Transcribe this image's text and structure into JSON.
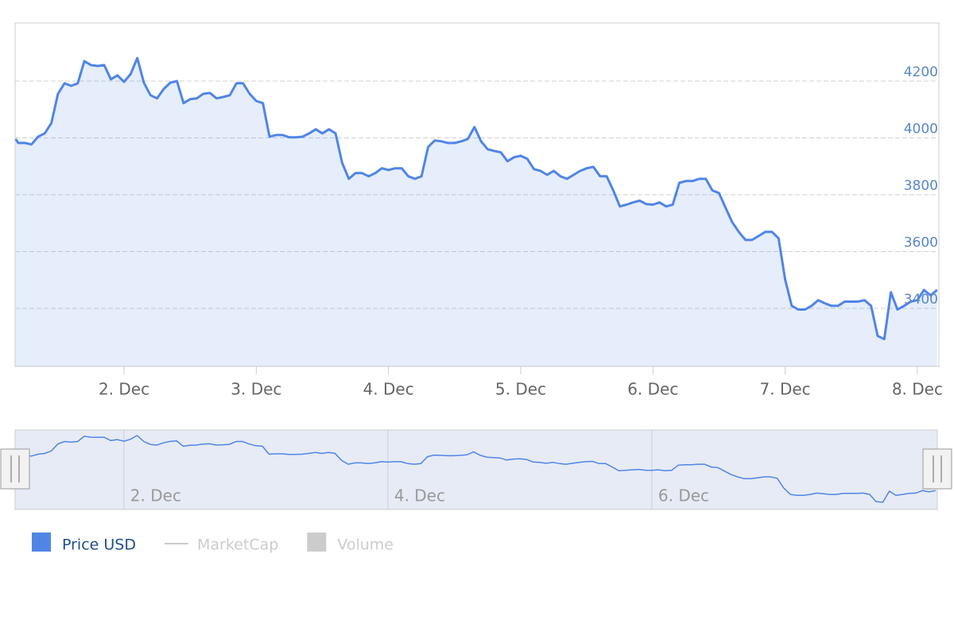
{
  "chart_data": {
    "type": "area",
    "x": [
      1.18,
      1.2,
      1.25,
      1.3,
      1.35,
      1.4,
      1.45,
      1.5,
      1.55,
      1.6,
      1.65,
      1.7,
      1.75,
      1.8,
      1.85,
      1.9,
      1.95,
      2.0,
      2.05,
      2.1,
      2.15,
      2.2,
      2.25,
      2.3,
      2.35,
      2.4,
      2.45,
      2.5,
      2.55,
      2.6,
      2.65,
      2.7,
      2.75,
      2.8,
      2.85,
      2.9,
      2.95,
      3.0,
      3.05,
      3.1,
      3.15,
      3.2,
      3.25,
      3.3,
      3.35,
      3.4,
      3.45,
      3.5,
      3.55,
      3.6,
      3.65,
      3.7,
      3.75,
      3.8,
      3.85,
      3.9,
      3.95,
      4.0,
      4.05,
      4.1,
      4.15,
      4.2,
      4.25,
      4.3,
      4.35,
      4.4,
      4.45,
      4.5,
      4.55,
      4.6,
      4.65,
      4.7,
      4.75,
      4.8,
      4.85,
      4.9,
      4.95,
      5.0,
      5.05,
      5.1,
      5.15,
      5.2,
      5.25,
      5.3,
      5.35,
      5.4,
      5.45,
      5.5,
      5.55,
      5.6,
      5.65,
      5.7,
      5.75,
      5.8,
      5.85,
      5.9,
      5.95,
      6.0,
      6.05,
      6.1,
      6.15,
      6.2,
      6.25,
      6.3,
      6.35,
      6.4,
      6.45,
      6.5,
      6.55,
      6.6,
      6.65,
      6.7,
      6.75,
      6.8,
      6.85,
      6.9,
      6.95,
      7.0,
      7.05,
      7.1,
      7.15,
      7.2,
      7.25,
      7.3,
      7.35,
      7.4,
      7.45,
      7.5,
      7.55,
      7.6,
      7.65,
      7.7,
      7.75,
      7.8,
      7.85,
      7.9,
      7.95,
      8.0,
      8.05,
      8.1,
      8.15
    ],
    "series": [
      {
        "name": "Price USD",
        "color": "#5085e6",
        "visible": true,
        "values": [
          3996,
          3982,
          3982,
          3977,
          4004,
          4016,
          4052,
          4155,
          4192,
          4183,
          4192,
          4270,
          4256,
          4253,
          4256,
          4206,
          4220,
          4197,
          4225,
          4281,
          4194,
          4150,
          4139,
          4172,
          4194,
          4200,
          4122,
          4136,
          4139,
          4155,
          4158,
          4139,
          4144,
          4150,
          4192,
          4192,
          4155,
          4130,
          4122,
          4004,
          4010,
          4010,
          4002,
          4002,
          4004,
          4016,
          4030,
          4016,
          4030,
          4016,
          3912,
          3856,
          3876,
          3876,
          3865,
          3876,
          3893,
          3887,
          3893,
          3893,
          3865,
          3856,
          3865,
          3968,
          3991,
          3988,
          3982,
          3982,
          3988,
          3996,
          4038,
          3988,
          3960,
          3954,
          3949,
          3918,
          3932,
          3937,
          3926,
          3890,
          3884,
          3870,
          3884,
          3865,
          3856,
          3870,
          3884,
          3893,
          3898,
          3865,
          3865,
          3815,
          3759,
          3765,
          3773,
          3779,
          3767,
          3765,
          3773,
          3759,
          3765,
          3842,
          3848,
          3848,
          3856,
          3856,
          3815,
          3806,
          3754,
          3703,
          3669,
          3641,
          3641,
          3655,
          3669,
          3669,
          3647,
          3502,
          3409,
          3396,
          3396,
          3409,
          3429,
          3418,
          3409,
          3409,
          3424,
          3424,
          3424,
          3429,
          3409,
          3303,
          3292,
          3457,
          3396,
          3409,
          3424,
          3429,
          3465,
          3446,
          3465
        ]
      },
      {
        "name": "MarketCap",
        "color": "#cccccc",
        "visible": false,
        "symbol": "line"
      },
      {
        "name": "Volume",
        "color": "#cccccc",
        "visible": false,
        "symbol": "square"
      }
    ],
    "xlim": [
      1.176,
      8.163
    ],
    "xticks": [
      {
        "value": 2,
        "label": "2. Dec"
      },
      {
        "value": 3,
        "label": "3. Dec"
      },
      {
        "value": 4,
        "label": "4. Dec"
      },
      {
        "value": 5,
        "label": "5. Dec"
      },
      {
        "value": 6,
        "label": "6. Dec"
      },
      {
        "value": 7,
        "label": "7. Dec"
      },
      {
        "value": 8,
        "label": "8. Dec"
      }
    ],
    "ylim": [
      3196,
      4404
    ],
    "yticks": [
      3400,
      3600,
      3800,
      4000,
      4200
    ],
    "grid": true,
    "navigator": {
      "ylim": [
        3186,
        4363
      ],
      "xticks": [
        {
          "value": 2,
          "label": "2. Dec"
        },
        {
          "value": 4,
          "label": "4. Dec"
        },
        {
          "value": 6,
          "label": "6. Dec"
        }
      ]
    }
  }
}
